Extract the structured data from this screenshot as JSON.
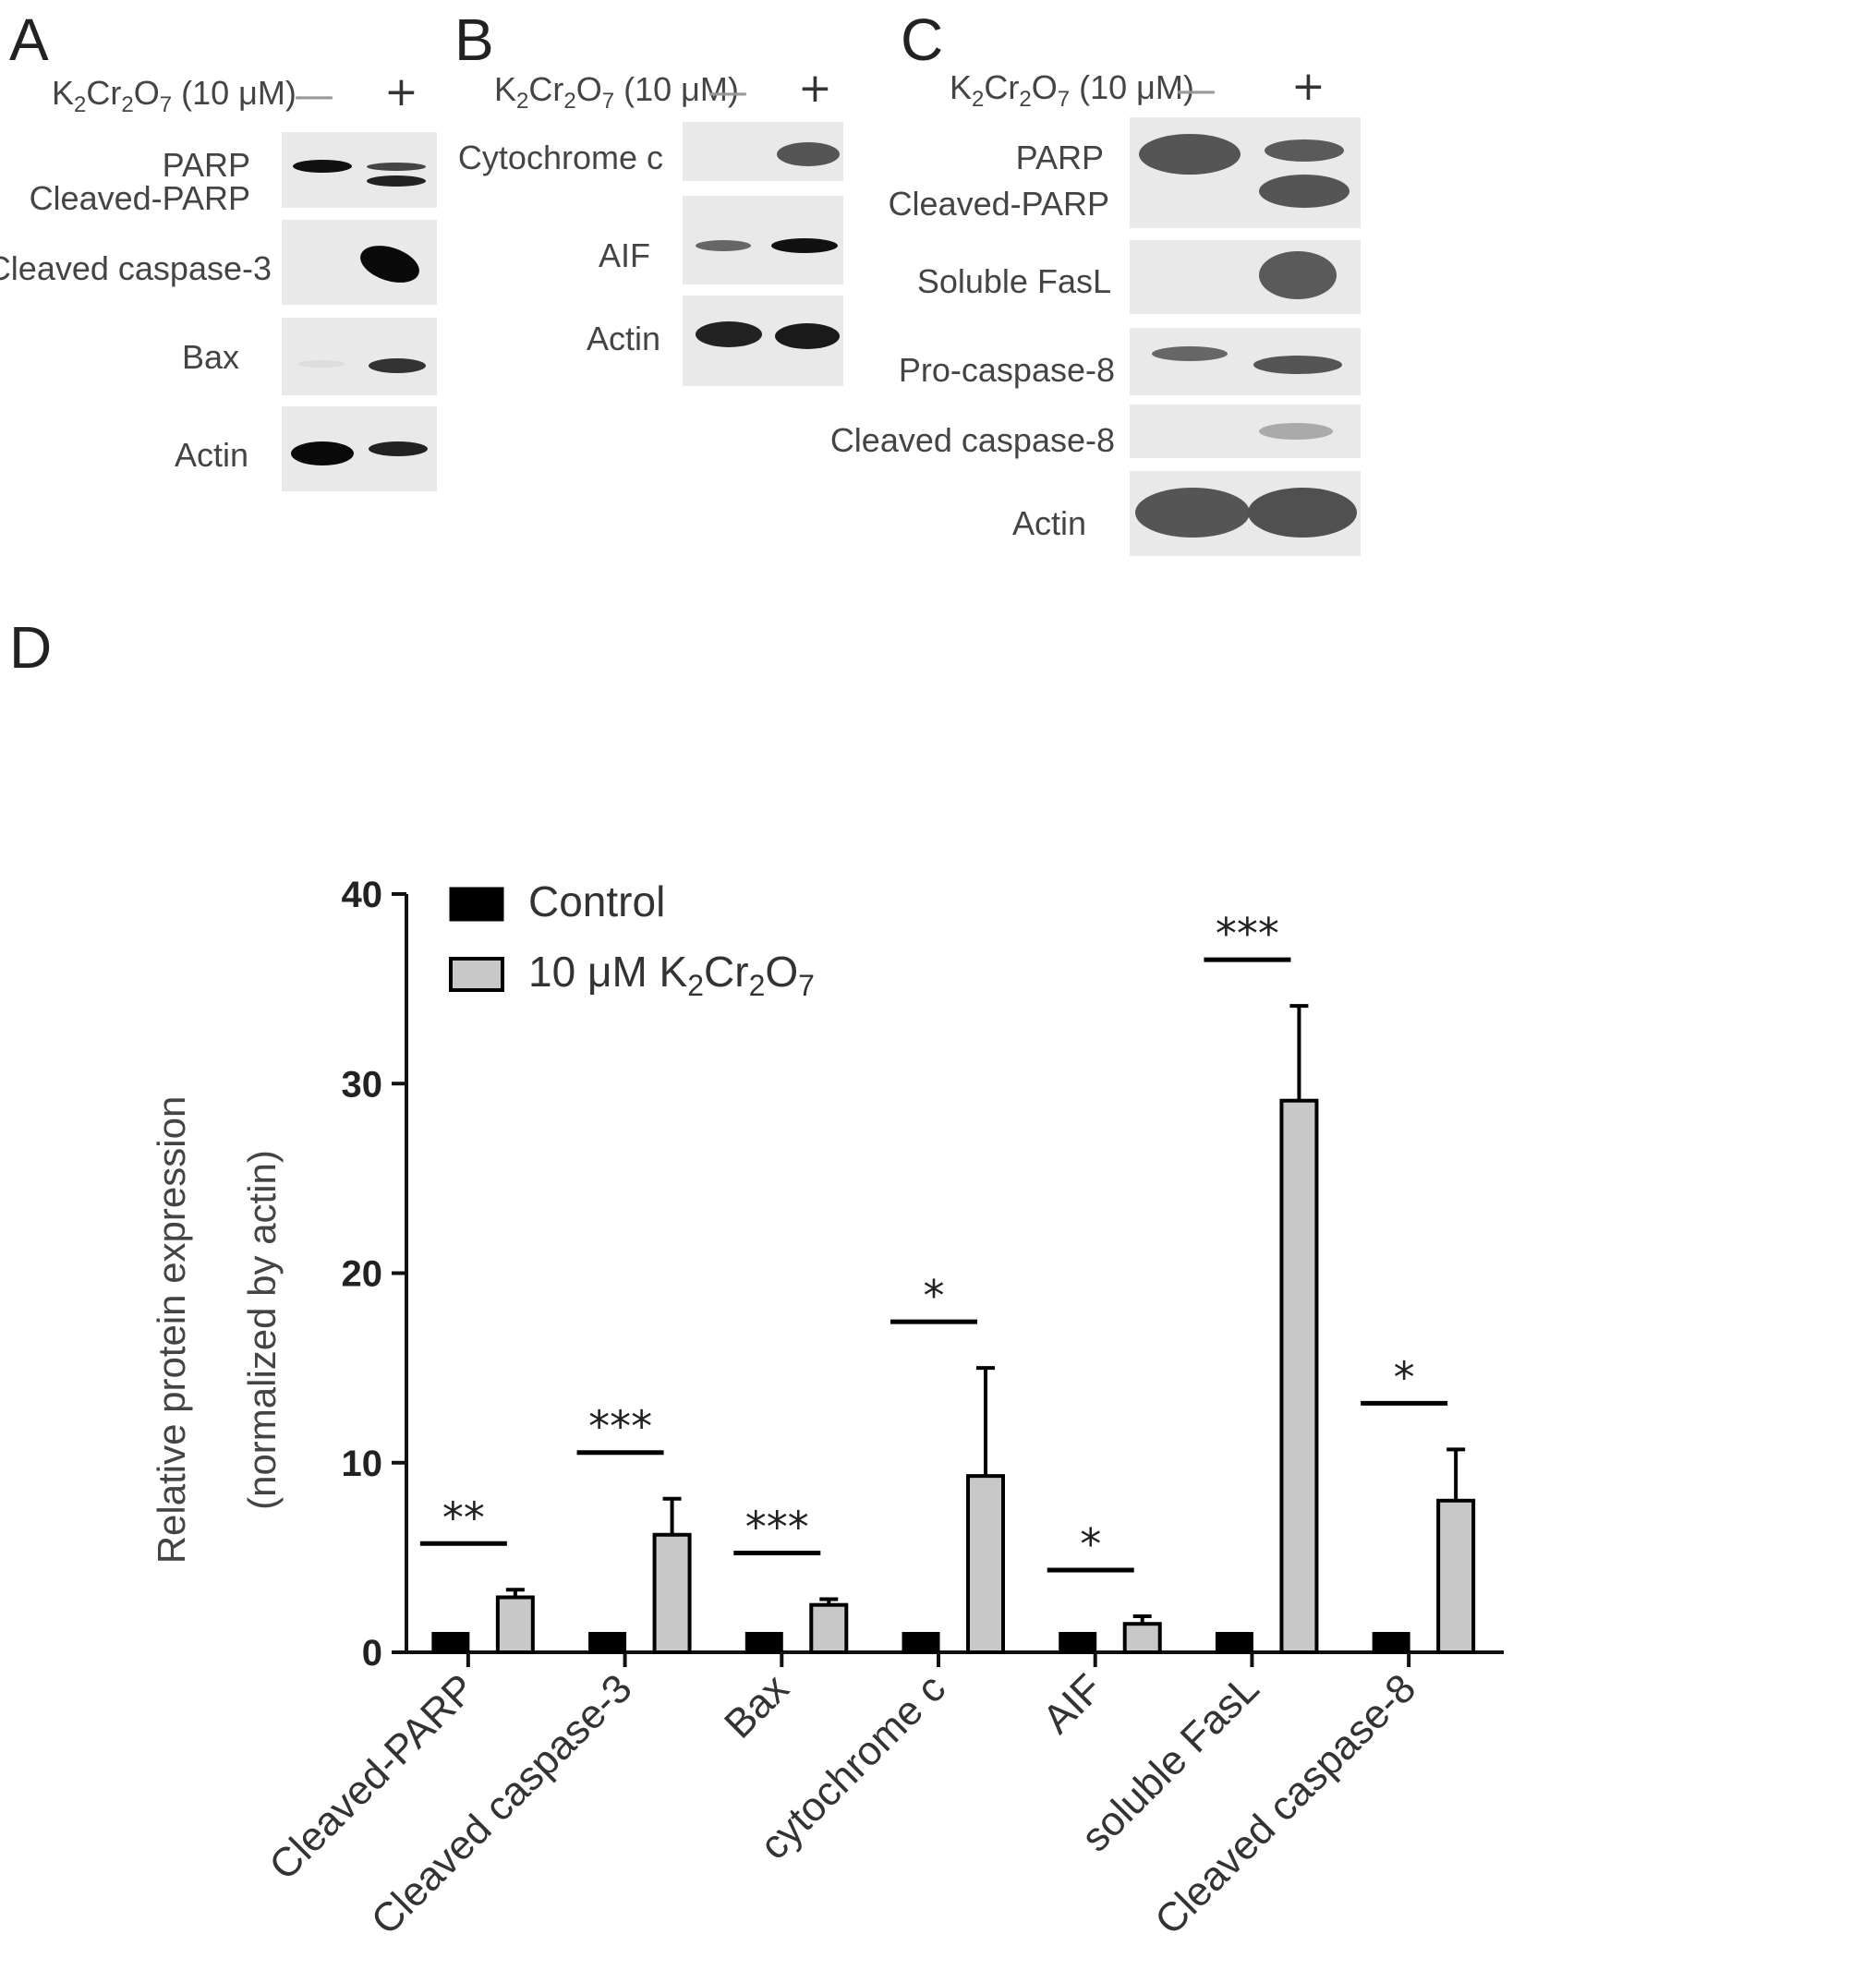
{
  "panels": {
    "A": {
      "letter": "A",
      "treatment": {
        "prefix": "K",
        "s1": "2",
        "mid": "Cr",
        "s2": "2",
        "o": "O",
        "s3": "7",
        "suffix": " (10 μM)",
        "minus": "—",
        "plus": "+"
      },
      "labels": [
        "PARP",
        "Cleaved-PARP",
        "Cleaved caspase-3",
        "Bax",
        "Actin"
      ]
    },
    "B": {
      "letter": "B",
      "treatment": {
        "prefix": "K",
        "s1": "2",
        "mid": "Cr",
        "s2": "2",
        "o": "O",
        "s3": "7",
        "suffix": " (10 μM)",
        "minus": "—",
        "plus": "+"
      },
      "labels": [
        "Cytochrome c",
        "AIF",
        "Actin"
      ]
    },
    "C": {
      "letter": "C",
      "treatment": {
        "prefix": "K",
        "s1": "2",
        "mid": "Cr",
        "s2": "2",
        "o": "O",
        "s3": "7",
        "suffix": " (10 μM)",
        "minus": "—",
        "plus": "+"
      },
      "labels": [
        "PARP",
        "Cleaved-PARP",
        "Soluble FasL",
        "Pro-caspase-8",
        "Cleaved caspase-8",
        "Actin"
      ]
    },
    "D": {
      "letter": "D"
    }
  },
  "chart_data": {
    "type": "bar",
    "ylabel_line1": "Relative protein expression",
    "ylabel_line2": "(normalized by actin)",
    "ylim": [
      0,
      40
    ],
    "yticks": [
      "0",
      "10",
      "20",
      "30",
      "40"
    ],
    "categories": [
      "Cleaved-PARP",
      "Cleaved caspase-3",
      "Bax",
      "cytochrome c",
      "AIF",
      "soluble FasL",
      "Cleaved caspase-8"
    ],
    "series": [
      {
        "name": "Control",
        "values": [
          1,
          1,
          1,
          1,
          1,
          1,
          1
        ],
        "color": "#000000"
      },
      {
        "name": "10 μM K2Cr2O7",
        "values": [
          2.9,
          6.2,
          2.5,
          9.3,
          1.5,
          29.1,
          8.0
        ],
        "errors": [
          0.4,
          1.9,
          0.3,
          5.7,
          0.4,
          5.0,
          2.7
        ],
        "color": "#c8c8c8"
      }
    ],
    "significance": [
      "**",
      "***",
      "***",
      "*",
      "*",
      "***",
      "*"
    ],
    "legend": {
      "control": "Control",
      "treated": {
        "prefix": "10 μM K",
        "s1": "2",
        "mid": "Cr",
        "s2": "2",
        "o": "O",
        "s3": "7"
      },
      "position": "top-left"
    },
    "grid": false
  }
}
